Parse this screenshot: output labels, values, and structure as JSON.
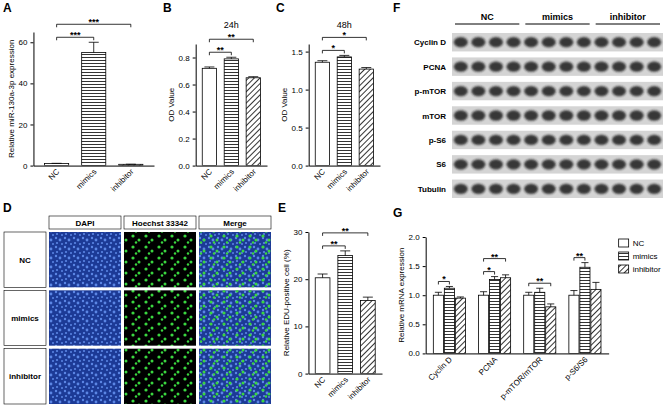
{
  "chart_data": [
    {
      "panel": "A",
      "type": "bar",
      "y_label": "Relative miR-130a-3p expression",
      "categories": [
        "NC",
        "mimics",
        "inhibitor"
      ],
      "values": [
        1.0,
        55,
        0.62
      ],
      "errors": [
        0.1,
        5,
        0.05
      ],
      "ylim": [
        0,
        65
      ],
      "yticks": [
        0,
        20,
        40,
        60
      ],
      "annotations": [
        {
          "text": "***",
          "pair": [
            0,
            1
          ]
        },
        {
          "text": "***",
          "pair": [
            0,
            2
          ]
        }
      ]
    },
    {
      "panel": "B",
      "type": "bar",
      "title": "24h",
      "y_label": "OD Value",
      "categories": [
        "NC",
        "mimics",
        "inhibitor"
      ],
      "values": [
        0.72,
        0.79,
        0.65
      ],
      "errors": [
        0.01,
        0.012,
        0.008
      ],
      "ylim": [
        0,
        0.9
      ],
      "yticks": [
        {
          "value": 0,
          "label": "0.0"
        },
        0.2,
        0.4,
        0.6,
        0.8
      ],
      "annotations": [
        {
          "text": "**",
          "pair": [
            0,
            1
          ]
        },
        {
          "text": "**",
          "pair": [
            0,
            2
          ]
        }
      ]
    },
    {
      "panel": "C",
      "type": "bar",
      "title": "48h",
      "y_label": "OD Value",
      "categories": [
        "NC",
        "mimics",
        "inhibitor"
      ],
      "values": [
        1.36,
        1.43,
        1.27
      ],
      "errors": [
        0.02,
        0.02,
        0.02
      ],
      "ylim": [
        0,
        1.6
      ],
      "yticks": [
        {
          "value": 0,
          "label": "0.0"
        },
        0.5,
        {
          "value": 1,
          "label": "1.0"
        },
        1.5
      ],
      "annotations": [
        {
          "text": "*",
          "pair": [
            0,
            1
          ]
        },
        {
          "text": "*",
          "pair": [
            0,
            2
          ]
        }
      ]
    },
    {
      "panel": "E",
      "type": "bar",
      "y_label": "Relative EDU-positive cell (%)",
      "categories": [
        "NC",
        "mimics",
        "inhibitor"
      ],
      "values": [
        20.3,
        25,
        15.5
      ],
      "errors": [
        0.8,
        1.0,
        0.7
      ],
      "ylim": [
        0,
        30
      ],
      "yticks": [
        0,
        10,
        20,
        30
      ],
      "annotations": [
        {
          "text": "**",
          "pair": [
            0,
            1
          ]
        },
        {
          "text": "**",
          "pair": [
            0,
            2
          ]
        }
      ]
    },
    {
      "panel": "G",
      "type": "bar",
      "y_label": "Relative mRNA expression",
      "categories": [
        "Cyclin D",
        "PCNA",
        "p-mTOR/mTOR",
        "p-S6/S6"
      ],
      "series": [
        {
          "name": "NC",
          "values": [
            1.0,
            1.0,
            1.0,
            1.0
          ],
          "errors": [
            0.05,
            0.06,
            0.05,
            0.08
          ]
        },
        {
          "name": "mimics",
          "values": [
            1.12,
            1.27,
            1.05,
            1.48
          ],
          "errors": [
            0.03,
            0.05,
            0.07,
            0.08
          ]
        },
        {
          "name": "inhibitor",
          "values": [
            0.95,
            1.3,
            0.8,
            1.1
          ],
          "errors": [
            0.02,
            0.05,
            0.05,
            0.12
          ]
        }
      ],
      "ylim": [
        0,
        2
      ],
      "yticks": [
        {
          "value": 0,
          "label": "0.0"
        },
        0.5,
        {
          "value": 1,
          "label": "1.0"
        },
        1.5,
        {
          "value": 2,
          "label": "2.0"
        }
      ],
      "legend": "right",
      "annotations": [
        {
          "text": "*",
          "category": 0,
          "pair": [
            0,
            1
          ]
        },
        {
          "text": "*",
          "category": 1,
          "pair": [
            0,
            1
          ]
        },
        {
          "text": "**",
          "category": 1,
          "pair": [
            0,
            2
          ]
        },
        {
          "text": "**",
          "category": 2,
          "pair": [
            0,
            2
          ]
        },
        {
          "text": "**",
          "category": 3,
          "pair": [
            0,
            1
          ]
        }
      ]
    }
  ],
  "images": {
    "panel": "D",
    "rows": [
      "NC",
      "mimics",
      "inhibitor"
    ],
    "columns": [
      "DAPI",
      "Hoechst 33342",
      "Merge"
    ]
  },
  "blot": {
    "panel": "F",
    "groups": [
      "NC",
      "mimics",
      "inhibitor"
    ],
    "rows": [
      "Cyclin D",
      "PCNA",
      "p-mTOR",
      "mTOR",
      "p-S6",
      "S6",
      "Tubulin"
    ]
  }
}
